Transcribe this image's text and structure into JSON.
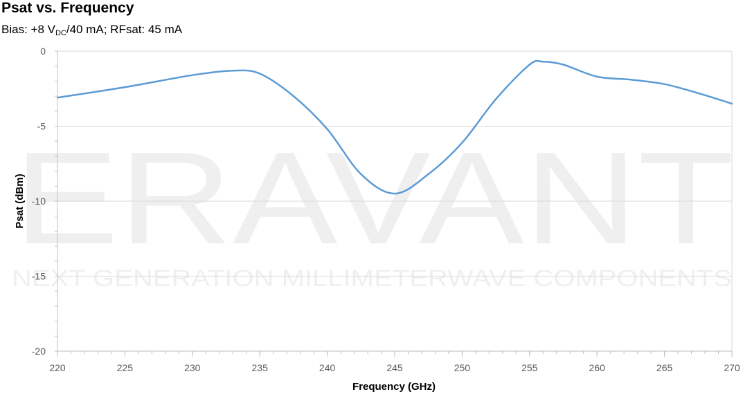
{
  "chart_data": {
    "type": "line",
    "title": "Psat vs. Frequency",
    "subtitle": {
      "pre": "Bias: +8 V",
      "sub": "DC",
      "post": "/40 mA; RFsat: 45 mA"
    },
    "xlabel": "Frequency (GHz)",
    "ylabel": "Psat (dBm)",
    "xlim": [
      220,
      270
    ],
    "ylim": [
      -20,
      0
    ],
    "xticks": [
      "220",
      "225",
      "230",
      "235",
      "240",
      "245",
      "250",
      "255",
      "260",
      "265",
      "270"
    ],
    "yticks": [
      "0",
      "-5",
      "-10",
      "-15",
      "-20"
    ],
    "grid": "horizontal",
    "series": [
      {
        "color": "#5b9bd5",
        "x": [
          220,
          225,
          230,
          233,
          235,
          237.5,
          240,
          242.5,
          245,
          247.5,
          250,
          252.5,
          255,
          256,
          257.5,
          260,
          262.5,
          265,
          267.5,
          270
        ],
        "y": [
          -3.1,
          -2.4,
          -1.6,
          -1.3,
          -1.5,
          -3.0,
          -5.2,
          -8.2,
          -9.5,
          -8.2,
          -6.1,
          -3.2,
          -0.9,
          -0.7,
          -0.9,
          -1.7,
          -1.9,
          -2.2,
          -2.8,
          -3.5
        ]
      }
    ]
  },
  "watermark": {
    "brand": "ERAVANT",
    "tagline": "NEXT GENERATION MILLIMETERWAVE COMPONENTS"
  }
}
